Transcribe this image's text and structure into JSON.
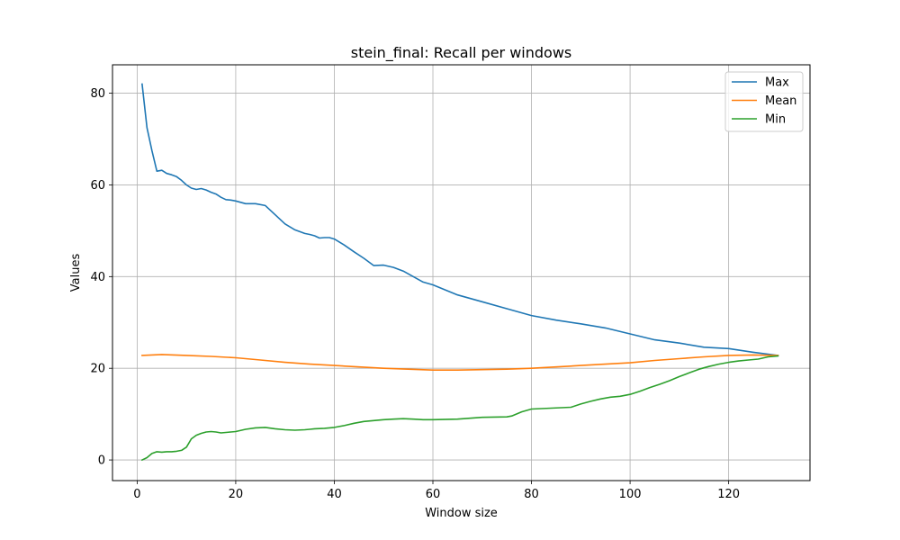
{
  "chart_data": {
    "type": "line",
    "title": "stein_final: Recall per windows",
    "xlabel": "Window size",
    "ylabel": "Values",
    "xlim": [
      -5,
      136.5
    ],
    "ylim": [
      -4.5,
      86.2
    ],
    "xticks": [
      0,
      20,
      40,
      60,
      80,
      100,
      120
    ],
    "yticks": [
      0,
      20,
      40,
      60,
      80
    ],
    "grid": true,
    "legend_position": "top-right",
    "series": [
      {
        "name": "Max",
        "color": "#1f77b4",
        "x": [
          1,
          2,
          3,
          4,
          5,
          6,
          7,
          8,
          9,
          10,
          11,
          12,
          13,
          14,
          15,
          16,
          17,
          18,
          19,
          20,
          22,
          24,
          26,
          28,
          30,
          32,
          34,
          35,
          36,
          37,
          38,
          39,
          40,
          42,
          44,
          46,
          48,
          50,
          52,
          54,
          56,
          58,
          60,
          65,
          70,
          75,
          80,
          85,
          90,
          95,
          100,
          105,
          110,
          115,
          120,
          125,
          130
        ],
        "y": [
          82,
          72.5,
          67.5,
          63,
          63.2,
          62.5,
          62.2,
          61.8,
          61,
          60,
          59.3,
          59,
          59.2,
          58.9,
          58.4,
          58,
          57.3,
          56.8,
          56.7,
          56.5,
          55.9,
          55.9,
          55.5,
          53.5,
          51.5,
          50.2,
          49.4,
          49.2,
          48.9,
          48.4,
          48.5,
          48.5,
          48.2,
          46.9,
          45.4,
          44.0,
          42.4,
          42.5,
          42.0,
          41.2,
          40.0,
          38.8,
          38.2,
          36.0,
          34.5,
          33.0,
          31.5,
          30.5,
          29.7,
          28.8,
          27.5,
          26.2,
          25.5,
          24.6,
          24.3,
          23.5,
          22.8
        ]
      },
      {
        "name": "Mean",
        "color": "#ff7f0e",
        "x": [
          1,
          5,
          10,
          15,
          20,
          25,
          30,
          35,
          40,
          45,
          50,
          55,
          60,
          65,
          70,
          75,
          80,
          85,
          90,
          95,
          100,
          105,
          110,
          115,
          120,
          125,
          130
        ],
        "y": [
          22.8,
          23.0,
          22.8,
          22.6,
          22.3,
          21.8,
          21.3,
          20.9,
          20.6,
          20.3,
          20.0,
          19.8,
          19.6,
          19.6,
          19.7,
          19.8,
          20.0,
          20.3,
          20.6,
          20.9,
          21.2,
          21.7,
          22.1,
          22.5,
          22.8,
          22.9,
          22.8
        ]
      },
      {
        "name": "Min",
        "color": "#2ca02c",
        "x": [
          1,
          2,
          3,
          4,
          5,
          6,
          7,
          8,
          9,
          10,
          11,
          12,
          13,
          14,
          15,
          16,
          17,
          18,
          19,
          20,
          22,
          24,
          26,
          28,
          30,
          32,
          34,
          35,
          36,
          38,
          40,
          42,
          44,
          46,
          48,
          50,
          52,
          54,
          56,
          58,
          60,
          65,
          70,
          75,
          76,
          78,
          80,
          82,
          84,
          86,
          88,
          90,
          92,
          94,
          96,
          98,
          100,
          102,
          104,
          106,
          108,
          110,
          112,
          114,
          116,
          118,
          120,
          122,
          124,
          126,
          128,
          130
        ],
        "y": [
          0,
          0.5,
          1.4,
          1.8,
          1.7,
          1.8,
          1.8,
          1.9,
          2.1,
          2.8,
          4.6,
          5.4,
          5.8,
          6.1,
          6.2,
          6.1,
          5.9,
          6.0,
          6.1,
          6.2,
          6.7,
          7.0,
          7.1,
          6.8,
          6.6,
          6.5,
          6.6,
          6.7,
          6.8,
          6.9,
          7.1,
          7.5,
          8.0,
          8.4,
          8.6,
          8.8,
          8.9,
          9.0,
          8.9,
          8.8,
          8.8,
          8.9,
          9.3,
          9.4,
          9.6,
          10.5,
          11.1,
          11.2,
          11.3,
          11.4,
          11.5,
          12.2,
          12.8,
          13.3,
          13.7,
          13.9,
          14.3,
          15.0,
          15.8,
          16.5,
          17.3,
          18.2,
          19.0,
          19.8,
          20.4,
          20.9,
          21.3,
          21.6,
          21.8,
          22.0,
          22.5,
          22.7
        ]
      }
    ]
  }
}
